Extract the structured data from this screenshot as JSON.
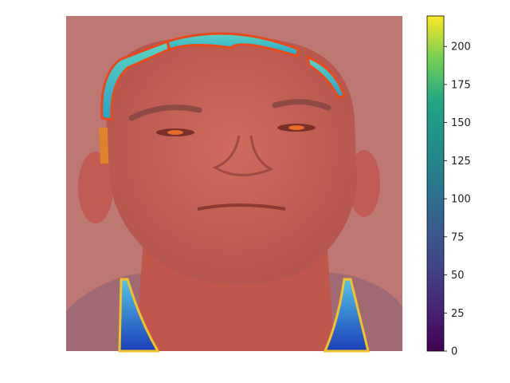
{
  "image": {
    "subject": "face-photo",
    "overlay": "heatmap",
    "overlay_cmap": "jet",
    "base_tint": "#b8736f"
  },
  "colorbar": {
    "cmap": "viridis",
    "range": [
      0,
      220
    ],
    "ticks": [
      "0",
      "25",
      "50",
      "75",
      "100",
      "125",
      "150",
      "175",
      "200"
    ],
    "tick_values": [
      0,
      25,
      50,
      75,
      100,
      125,
      150,
      175,
      200
    ]
  }
}
